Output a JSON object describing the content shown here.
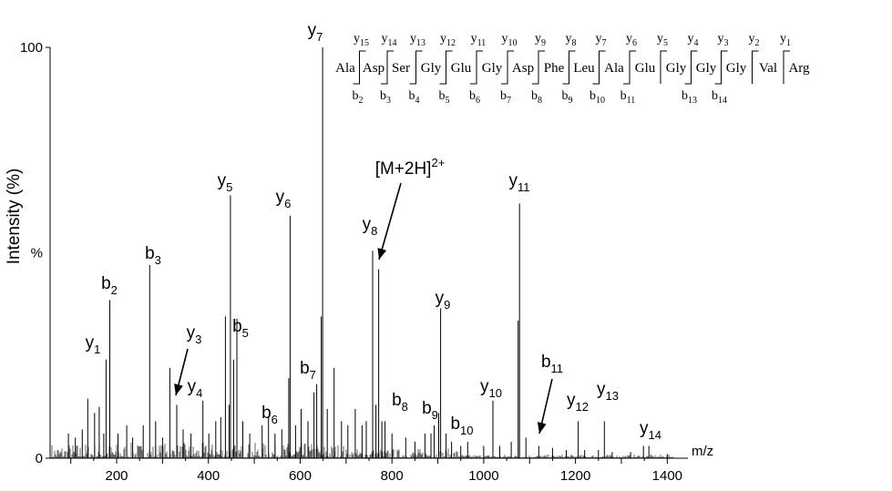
{
  "chart_data": {
    "type": "bar",
    "title": "",
    "xlabel": "m/z",
    "ylabel": "Intensity (%)",
    "y_mid_label": "%",
    "xlim": [
      55,
      1445
    ],
    "ylim": [
      0,
      100
    ],
    "x_ticks": [
      200,
      400,
      600,
      800,
      1000,
      1200,
      1400
    ],
    "y_ticks": [
      0,
      100
    ],
    "grid": false,
    "legend": "none",
    "peaks": [
      {
        "mz": 95,
        "i": 6
      },
      {
        "mz": 110,
        "i": 5
      },
      {
        "mz": 125,
        "i": 7
      },
      {
        "mz": 137,
        "i": 14.5
      },
      {
        "mz": 152,
        "i": 11
      },
      {
        "mz": 162,
        "i": 12.5
      },
      {
        "mz": 172,
        "i": 6
      },
      {
        "mz": 177,
        "i": 24
      },
      {
        "mz": 185,
        "i": 38.5
      },
      {
        "mz": 203,
        "i": 6
      },
      {
        "mz": 222,
        "i": 8
      },
      {
        "mz": 235,
        "i": 5
      },
      {
        "mz": 258,
        "i": 8
      },
      {
        "mz": 272,
        "i": 47
      },
      {
        "mz": 285,
        "i": 9
      },
      {
        "mz": 300,
        "i": 5
      },
      {
        "mz": 316,
        "i": 22
      },
      {
        "mz": 331,
        "i": 13
      },
      {
        "mz": 345,
        "i": 7
      },
      {
        "mz": 362,
        "i": 6
      },
      {
        "mz": 388,
        "i": 14
      },
      {
        "mz": 401,
        "i": 6
      },
      {
        "mz": 416,
        "i": 9
      },
      {
        "mz": 427,
        "i": 10
      },
      {
        "mz": 437,
        "i": 34.5
      },
      {
        "mz": 445,
        "i": 13
      },
      {
        "mz": 448,
        "i": 64
      },
      {
        "mz": 455,
        "i": 24
      },
      {
        "mz": 462,
        "i": 34
      },
      {
        "mz": 475,
        "i": 9
      },
      {
        "mz": 490,
        "i": 6
      },
      {
        "mz": 517,
        "i": 8
      },
      {
        "mz": 531,
        "i": 10
      },
      {
        "mz": 545,
        "i": 6
      },
      {
        "mz": 560,
        "i": 7
      },
      {
        "mz": 575,
        "i": 19.5
      },
      {
        "mz": 578,
        "i": 59
      },
      {
        "mz": 590,
        "i": 8
      },
      {
        "mz": 602,
        "i": 12
      },
      {
        "mz": 617,
        "i": 9
      },
      {
        "mz": 630,
        "i": 16
      },
      {
        "mz": 636,
        "i": 18
      },
      {
        "mz": 646,
        "i": 34.5
      },
      {
        "mz": 649,
        "i": 100
      },
      {
        "mz": 659,
        "i": 12
      },
      {
        "mz": 674,
        "i": 22
      },
      {
        "mz": 690,
        "i": 9
      },
      {
        "mz": 704,
        "i": 8
      },
      {
        "mz": 720,
        "i": 12
      },
      {
        "mz": 735,
        "i": 8
      },
      {
        "mz": 744,
        "i": 9
      },
      {
        "mz": 758,
        "i": 50.5
      },
      {
        "mz": 765,
        "i": 13
      },
      {
        "mz": 771,
        "i": 46
      },
      {
        "mz": 778,
        "i": 9
      },
      {
        "mz": 785,
        "i": 9
      },
      {
        "mz": 800,
        "i": 6
      },
      {
        "mz": 830,
        "i": 5
      },
      {
        "mz": 850,
        "i": 4
      },
      {
        "mz": 872,
        "i": 6
      },
      {
        "mz": 885,
        "i": 6
      },
      {
        "mz": 892,
        "i": 8
      },
      {
        "mz": 902,
        "i": 11
      },
      {
        "mz": 906,
        "i": 36.5
      },
      {
        "mz": 918,
        "i": 6
      },
      {
        "mz": 930,
        "i": 4
      },
      {
        "mz": 950,
        "i": 3
      },
      {
        "mz": 965,
        "i": 4
      },
      {
        "mz": 1000,
        "i": 3
      },
      {
        "mz": 1020,
        "i": 14
      },
      {
        "mz": 1035,
        "i": 3
      },
      {
        "mz": 1060,
        "i": 4
      },
      {
        "mz": 1075,
        "i": 33.5
      },
      {
        "mz": 1078,
        "i": 62
      },
      {
        "mz": 1092,
        "i": 5
      },
      {
        "mz": 1120,
        "i": 3
      },
      {
        "mz": 1150,
        "i": 2.5
      },
      {
        "mz": 1180,
        "i": 2
      },
      {
        "mz": 1206,
        "i": 9
      },
      {
        "mz": 1220,
        "i": 2
      },
      {
        "mz": 1250,
        "i": 2
      },
      {
        "mz": 1263,
        "i": 9
      },
      {
        "mz": 1280,
        "i": 1.5
      },
      {
        "mz": 1320,
        "i": 1.5
      },
      {
        "mz": 1348,
        "i": 3
      },
      {
        "mz": 1360,
        "i": 3
      },
      {
        "mz": 1400,
        "i": 1
      }
    ],
    "annotations": [
      {
        "ion": "y",
        "n": "1",
        "mz": 177,
        "i": 24
      },
      {
        "ion": "b",
        "n": "2",
        "mz": 185,
        "i": 38.5
      },
      {
        "ion": "b",
        "n": "3",
        "mz": 272,
        "i": 47
      },
      {
        "ion": "y",
        "n": "3",
        "mz": 331,
        "i": 13
      },
      {
        "ion": "y",
        "n": "4",
        "mz": 388,
        "i": 14
      },
      {
        "ion": "y",
        "n": "5",
        "mz": 448,
        "i": 64
      },
      {
        "ion": "b",
        "n": "5",
        "mz": 462,
        "i": 34
      },
      {
        "ion": "b",
        "n": "6",
        "mz": 517,
        "i": 8
      },
      {
        "ion": "y",
        "n": "6",
        "mz": 578,
        "i": 59
      },
      {
        "ion": "b",
        "n": "7",
        "mz": 630,
        "i": 16
      },
      {
        "ion": "y",
        "n": "7",
        "mz": 649,
        "i": 100
      },
      {
        "ion": "y",
        "n": "8",
        "mz": 758,
        "i": 50.5
      },
      {
        "ion": "[M+2H]",
        "n": "2+",
        "mz": 771,
        "i": 46
      },
      {
        "ion": "b",
        "n": "8",
        "mz": 785,
        "i": 9
      },
      {
        "ion": "b",
        "n": "9",
        "mz": 892,
        "i": 8
      },
      {
        "ion": "y",
        "n": "9",
        "mz": 906,
        "i": 36.5
      },
      {
        "ion": "b",
        "n": "10",
        "mz": 918,
        "i": 6
      },
      {
        "ion": "y",
        "n": "10",
        "mz": 1020,
        "i": 14
      },
      {
        "ion": "y",
        "n": "11",
        "mz": 1078,
        "i": 62
      },
      {
        "ion": "b",
        "n": "11",
        "mz": 1092,
        "i": 5
      },
      {
        "ion": "y",
        "n": "12",
        "mz": 1206,
        "i": 9
      },
      {
        "ion": "y",
        "n": "13",
        "mz": 1263,
        "i": 9
      },
      {
        "ion": "y",
        "n": "14",
        "mz": 1360,
        "i": 3
      }
    ]
  },
  "sequence": {
    "residues": [
      "Ala",
      "Asp",
      "Ser",
      "Gly",
      "Glu",
      "Gly",
      "Asp",
      "Phe",
      "Leu",
      "Ala",
      "Glu",
      "Gly",
      "Gly",
      "Gly",
      "Val",
      "Arg"
    ],
    "y_ions": [
      "15",
      "14",
      "13",
      "12",
      "11",
      "10",
      "9",
      "8",
      "7",
      "6",
      "5",
      "4",
      "3",
      "2",
      "1"
    ],
    "b_ions": [
      "2",
      "3",
      "4",
      "5",
      "6",
      "7",
      "8",
      "9",
      "10",
      "11",
      "",
      "13",
      "14",
      "",
      ""
    ]
  }
}
